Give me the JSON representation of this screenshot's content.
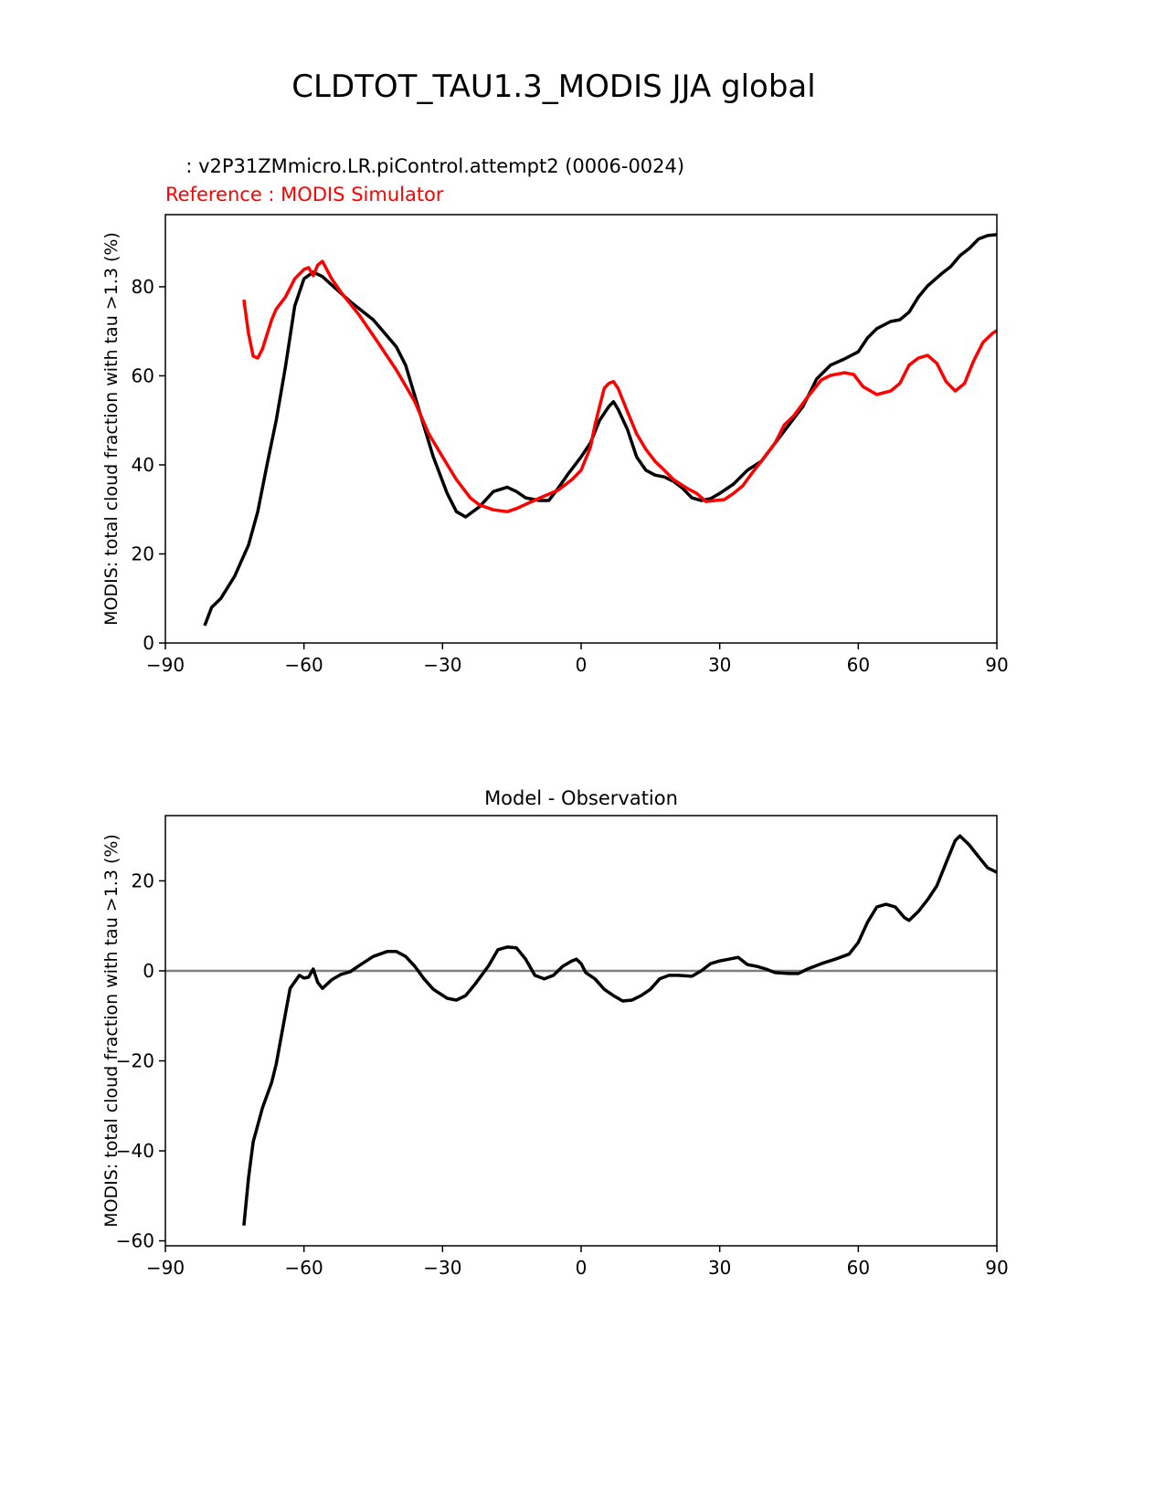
{
  "title": "CLDTOT_TAU1.3_MODIS JJA global",
  "chart_data": [
    {
      "type": "line",
      "test_label": "  : v2P31ZMmicro.LR.piControl.attempt2 (0006-0024)",
      "reference_label": "Reference : MODIS Simulator",
      "title": "",
      "xlabel": "",
      "ylabel": "MODIS: total cloud fraction with tau >1.3 (%)",
      "xlim": [
        -90,
        90
      ],
      "ylim": [
        0,
        96.2
      ],
      "xticks": [
        -90,
        -60,
        -30,
        0,
        30,
        60,
        90
      ],
      "xtick_labels": [
        "−90",
        "−60",
        "−30",
        "0",
        "30",
        "60",
        "90"
      ],
      "yticks": [
        0,
        20,
        40,
        60,
        80
      ],
      "ytick_labels": [
        "0",
        "20",
        "40",
        "60",
        "80"
      ],
      "grid": false,
      "series": [
        {
          "name": "v2P31ZMmicro.LR.piControl.attempt2 (0006-0024)",
          "color": "#000000",
          "x": [
            -81.5,
            -80,
            -78,
            -75,
            -72,
            -70,
            -68,
            -66,
            -64,
            -62,
            -60,
            -58,
            -56,
            -54,
            -50,
            -45,
            -40,
            -38,
            -35,
            -32,
            -29,
            -27,
            -25,
            -22,
            -19,
            -16,
            -14,
            -12,
            -9,
            -7,
            -5,
            -3,
            0,
            2,
            4,
            6,
            7,
            8,
            10,
            12,
            14,
            16,
            18,
            20,
            22,
            24,
            26,
            28,
            30,
            33,
            36,
            39,
            42,
            45,
            48,
            51,
            54,
            57,
            60,
            62,
            64,
            67,
            69,
            71,
            73,
            75,
            78,
            80,
            82,
            84,
            86,
            88,
            90
          ],
          "y": [
            3.9,
            8,
            10,
            15,
            22,
            29.5,
            40,
            50,
            62,
            75.7,
            81.8,
            83.3,
            82.3,
            80.4,
            76.7,
            72.6,
            66.5,
            62.4,
            52,
            41.8,
            33.6,
            29.5,
            28.3,
            30.6,
            34,
            35,
            34,
            32.6,
            32,
            32,
            34.7,
            37.7,
            41.8,
            44.9,
            50,
            53.1,
            54.2,
            52.5,
            48,
            41.8,
            38.8,
            37.7,
            37.3,
            36.3,
            34.7,
            32.6,
            32,
            32.4,
            33.6,
            35.7,
            38.8,
            40.8,
            44.9,
            49,
            53.1,
            59.3,
            62.4,
            63.8,
            65.4,
            68.5,
            70.6,
            72.2,
            72.6,
            74.3,
            77.7,
            80.2,
            82.9,
            84.5,
            87,
            88.6,
            90.7,
            91.5,
            91.7
          ]
        },
        {
          "name": "MODIS Simulator",
          "color": "#ff0000",
          "x": [
            -73,
            -72,
            -71,
            -70,
            -69,
            -67,
            -66,
            -64,
            -62,
            -60,
            -59,
            -58,
            -57,
            -56,
            -54,
            -52,
            -48,
            -44,
            -40,
            -36,
            -33,
            -30,
            -27,
            -24,
            -22,
            -19,
            -16,
            -14,
            -11,
            -8,
            -5,
            -2,
            0,
            2,
            3,
            4,
            5,
            6,
            7,
            8,
            10,
            12,
            14,
            16,
            18,
            20,
            23,
            25,
            27,
            29,
            31,
            33,
            35,
            37,
            39,
            42,
            44,
            46,
            49,
            52,
            54,
            57,
            59,
            61,
            64,
            67,
            69,
            71,
            73,
            75,
            77,
            79,
            81,
            83,
            85,
            87,
            89,
            90
          ],
          "y": [
            77.1,
            69.5,
            64.4,
            64,
            66,
            72.6,
            75,
            77.7,
            81.8,
            83.9,
            84.3,
            82.5,
            84.9,
            85.7,
            81.8,
            78.8,
            73.6,
            67.5,
            61.3,
            54.2,
            47,
            41.8,
            36.7,
            32.6,
            31,
            29.9,
            29.5,
            30.2,
            31.6,
            33,
            34.3,
            36.7,
            38.8,
            43.9,
            49,
            53.1,
            57.2,
            58.3,
            58.7,
            57.2,
            52,
            47,
            43.5,
            40.8,
            38.8,
            36.7,
            34.7,
            33.6,
            31.8,
            32,
            32.2,
            33.6,
            35.3,
            38.2,
            40.8,
            44.9,
            49,
            51,
            55.2,
            59.1,
            60.1,
            60.7,
            60.3,
            57.6,
            55.8,
            56.6,
            58.3,
            62.4,
            64,
            64.6,
            62.8,
            58.7,
            56.6,
            58.3,
            63.4,
            67.5,
            69.5,
            70.2
          ]
        }
      ]
    },
    {
      "type": "line",
      "title": "Model - Observation",
      "xlabel": "",
      "ylabel": "MODIS: total cloud fraction with tau >1.3 (%)",
      "xlim": [
        -90,
        90
      ],
      "ylim": [
        -61.1,
        34.5
      ],
      "xticks": [
        -90,
        -60,
        -30,
        0,
        30,
        60,
        90
      ],
      "xtick_labels": [
        "−90",
        "−60",
        "−30",
        "0",
        "30",
        "60",
        "90"
      ],
      "yticks": [
        -60,
        -40,
        -20,
        0,
        20
      ],
      "ytick_labels": [
        "−60",
        "−40",
        "−20",
        "0",
        "20"
      ],
      "grid": false,
      "zero_line_color": "#808080",
      "series": [
        {
          "name": "Model - Observation",
          "color": "#000000",
          "x": [
            -73,
            -72,
            -71,
            -69,
            -67,
            -66,
            -64,
            -63,
            -61,
            -60,
            -59,
            -58,
            -57,
            -56,
            -54,
            -52,
            -50,
            -48,
            -45,
            -42,
            -40,
            -38,
            -36,
            -34,
            -32,
            -29,
            -27,
            -25,
            -23,
            -20,
            -18,
            -16,
            -14,
            -12,
            -10,
            -8,
            -6,
            -4,
            -2,
            -1,
            0,
            1,
            3,
            5,
            7,
            9,
            11,
            13,
            15,
            17,
            19,
            21,
            24,
            26,
            28,
            30,
            32,
            34,
            36,
            38,
            40,
            42,
            45,
            47,
            49,
            52,
            55,
            58,
            60,
            62,
            64,
            66,
            68,
            70,
            71,
            73,
            75,
            77,
            79,
            81,
            82,
            84,
            86,
            88,
            90
          ],
          "y": [
            -56.6,
            -46,
            -38,
            -30.5,
            -24.8,
            -20.7,
            -9.5,
            -3.9,
            -1,
            -1.6,
            -1.4,
            0.4,
            -2.6,
            -3.9,
            -2,
            -0.8,
            -0.2,
            1.2,
            3.2,
            4.3,
            4.3,
            3.2,
            1,
            -1.8,
            -4.1,
            -6.1,
            -6.5,
            -5.5,
            -3,
            1.2,
            4.7,
            5.3,
            5.1,
            2.6,
            -1,
            -1.8,
            -1,
            1,
            2.2,
            2.6,
            1.6,
            -0.4,
            -1.8,
            -4.1,
            -5.5,
            -6.7,
            -6.5,
            -5.5,
            -4.1,
            -1.8,
            -1,
            -1,
            -1.2,
            0,
            1.6,
            2.2,
            2.6,
            3,
            1.4,
            1,
            0.4,
            -0.4,
            -0.6,
            -0.6,
            0.4,
            1.6,
            2.6,
            3.7,
            6.3,
            10.8,
            14.2,
            14.8,
            14.2,
            11.8,
            11.2,
            13.2,
            15.8,
            18.9,
            24,
            29,
            30,
            28,
            25.4,
            22.9,
            21.9
          ]
        }
      ]
    }
  ]
}
